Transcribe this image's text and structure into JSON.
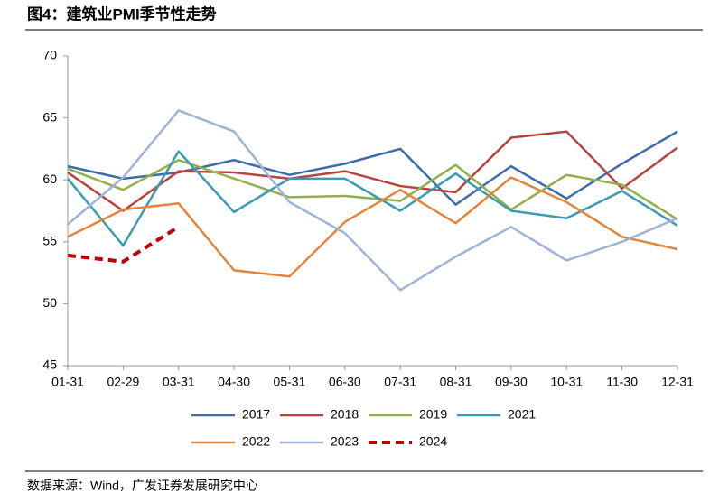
{
  "chart_data": {
    "type": "line",
    "title": "图4：建筑业PMI季节性走势",
    "source": "数据来源：Wind，广发证券发展研究中心",
    "categories": [
      "01-31",
      "02-29",
      "03-31",
      "04-30",
      "05-31",
      "06-30",
      "07-31",
      "08-31",
      "09-30",
      "10-31",
      "11-30",
      "12-31"
    ],
    "ylim": [
      45,
      70
    ],
    "yticks": [
      45,
      50,
      55,
      60,
      65,
      70
    ],
    "grid": false,
    "legend": "bottom",
    "series": [
      {
        "name": "2017",
        "color": "#3f6ca8",
        "values": [
          61.1,
          60.1,
          60.6,
          61.6,
          60.4,
          61.3,
          62.5,
          58.0,
          61.1,
          58.5,
          61.3,
          63.9
        ]
      },
      {
        "name": "2018",
        "color": "#b5443f",
        "values": [
          60.6,
          57.5,
          60.7,
          60.6,
          60.1,
          60.7,
          59.5,
          59.0,
          63.4,
          63.9,
          59.3,
          62.6
        ]
      },
      {
        "name": "2019",
        "color": "#8fb04a",
        "values": [
          60.9,
          59.2,
          61.6,
          60.1,
          58.6,
          58.7,
          58.3,
          61.2,
          57.6,
          60.4,
          59.6,
          56.8
        ]
      },
      {
        "name": "2021",
        "color": "#3d9bb1",
        "values": [
          60.1,
          54.7,
          62.3,
          57.4,
          60.1,
          60.1,
          57.5,
          60.5,
          57.5,
          56.9,
          59.1,
          56.3
        ]
      },
      {
        "name": "2022",
        "color": "#e4843a",
        "values": [
          55.4,
          57.6,
          58.1,
          52.7,
          52.2,
          56.6,
          59.2,
          56.5,
          60.2,
          58.2,
          55.4,
          54.4
        ]
      },
      {
        "name": "2023",
        "color": "#9db3d7",
        "values": [
          56.4,
          60.2,
          65.6,
          63.9,
          58.2,
          55.7,
          51.1,
          53.8,
          56.2,
          53.5,
          55.0,
          56.9
        ]
      },
      {
        "name": "2024",
        "color": "#c00000",
        "linestyle": "dashed",
        "values": [
          53.9,
          53.4,
          56.2,
          null,
          null,
          null,
          null,
          null,
          null,
          null,
          null,
          null
        ]
      }
    ]
  }
}
